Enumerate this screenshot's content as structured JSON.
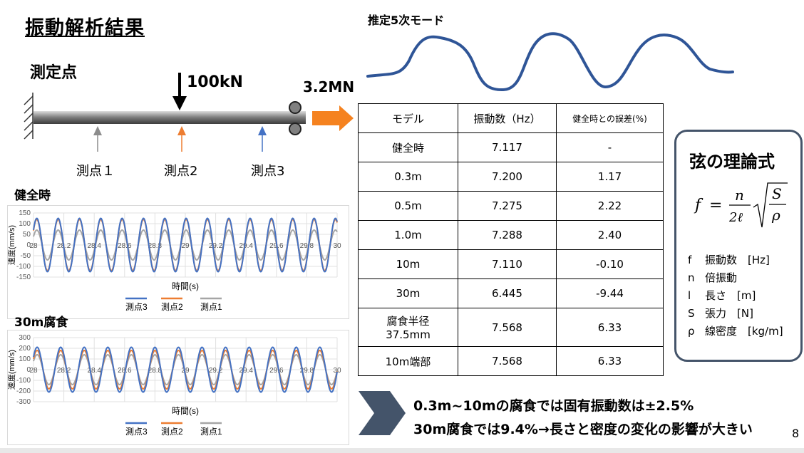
{
  "slide": {
    "title": "振動解析結果",
    "page_number": "8",
    "measure_label": "測定点",
    "load_label": "100kN",
    "tension_label": "3.2MN",
    "points": [
      {
        "name": "測点１",
        "color": "#8c8c8c"
      },
      {
        "name": "測点2",
        "color": "#ed7d31"
      },
      {
        "name": "測点3",
        "color": "#4472c4"
      }
    ],
    "mode_title": "推定5次モード",
    "arrow_color": "#f5821f",
    "mode_color": "#2f5597"
  },
  "table": {
    "headers": [
      "モデル",
      "振動数（Hz）",
      "健全時との誤差(%)"
    ],
    "rows": [
      [
        "健全時",
        "7.117",
        "-"
      ],
      [
        "0.3m",
        "7.200",
        "1.17"
      ],
      [
        "0.5m",
        "7.275",
        "2.22"
      ],
      [
        "1.0m",
        "7.288",
        "2.40"
      ],
      [
        "10m",
        "7.110",
        "-0.10"
      ],
      [
        "30m",
        "6.445",
        "-9.44"
      ],
      [
        "腐食半径",
        "7.568",
        "6.33"
      ],
      [
        "10m端部",
        "7.568",
        "6.33"
      ]
    ],
    "row7_sub": "37.5mm"
  },
  "formula_card": {
    "title": "弦の理論式",
    "formula_vars": {
      "f": "f",
      "n": "n",
      "l": "2ℓ",
      "S": "S",
      "rho": "ρ"
    },
    "definitions": [
      {
        "sym": "f",
        "text": "振動数　[Hz]"
      },
      {
        "sym": "n",
        "text": "倍振動"
      },
      {
        "sym": "l",
        "text": "長さ　[m]"
      },
      {
        "sym": "S",
        "text": "張力　[N]"
      },
      {
        "sym": "ρ",
        "text": "線密度　[kg/m]"
      }
    ]
  },
  "chart_data": [
    {
      "type": "line",
      "label": "健全時",
      "xlabel": "時間(s)",
      "ylabel": "速度(mm/s)",
      "xlim": [
        28,
        30
      ],
      "ylim": [
        -150,
        150
      ],
      "xticks": [
        "28",
        "28.2",
        "28.4",
        "28.6",
        "28.8",
        "29",
        "29.2",
        "29.4",
        "29.6",
        "29.8",
        "30"
      ],
      "yticks": [
        "150",
        "100",
        "50",
        "0",
        "-50",
        "-100",
        "-150"
      ],
      "frequency_hz": 7.117,
      "series": [
        {
          "name": "測点3",
          "color": "#4472c4",
          "amplitude": 125
        },
        {
          "name": "測点2",
          "color": "#ed7d31",
          "amplitude": 120
        },
        {
          "name": "測点1",
          "color": "#a5a5a5",
          "amplitude": 70
        }
      ]
    },
    {
      "type": "line",
      "label": "30m腐食",
      "xlabel": "時間(s)",
      "ylabel": "速度(mm/s)",
      "xlim": [
        28,
        30
      ],
      "ylim": [
        -300,
        300
      ],
      "xticks": [
        "28",
        "28.2",
        "28.4",
        "28.6",
        "28.8",
        "29",
        "29.2",
        "29.4",
        "29.6",
        "29.8",
        "30"
      ],
      "yticks": [
        "300",
        "200",
        "100",
        "0",
        "-100",
        "-200",
        "-300"
      ],
      "frequency_hz": 6.445,
      "series": [
        {
          "name": "測点3",
          "color": "#4472c4",
          "amplitude": 210
        },
        {
          "name": "測点2",
          "color": "#ed7d31",
          "amplitude": 180
        },
        {
          "name": "測点1",
          "color": "#a5a5a5",
          "amplitude": 140
        }
      ]
    }
  ],
  "conclusion": {
    "line1": "0.3m~10mの腐食では固有振動数は±2.5%",
    "line2": "30m腐食では9.4%→長さと密度の変化の影響が大きい",
    "chevron_color": "#44546a"
  }
}
